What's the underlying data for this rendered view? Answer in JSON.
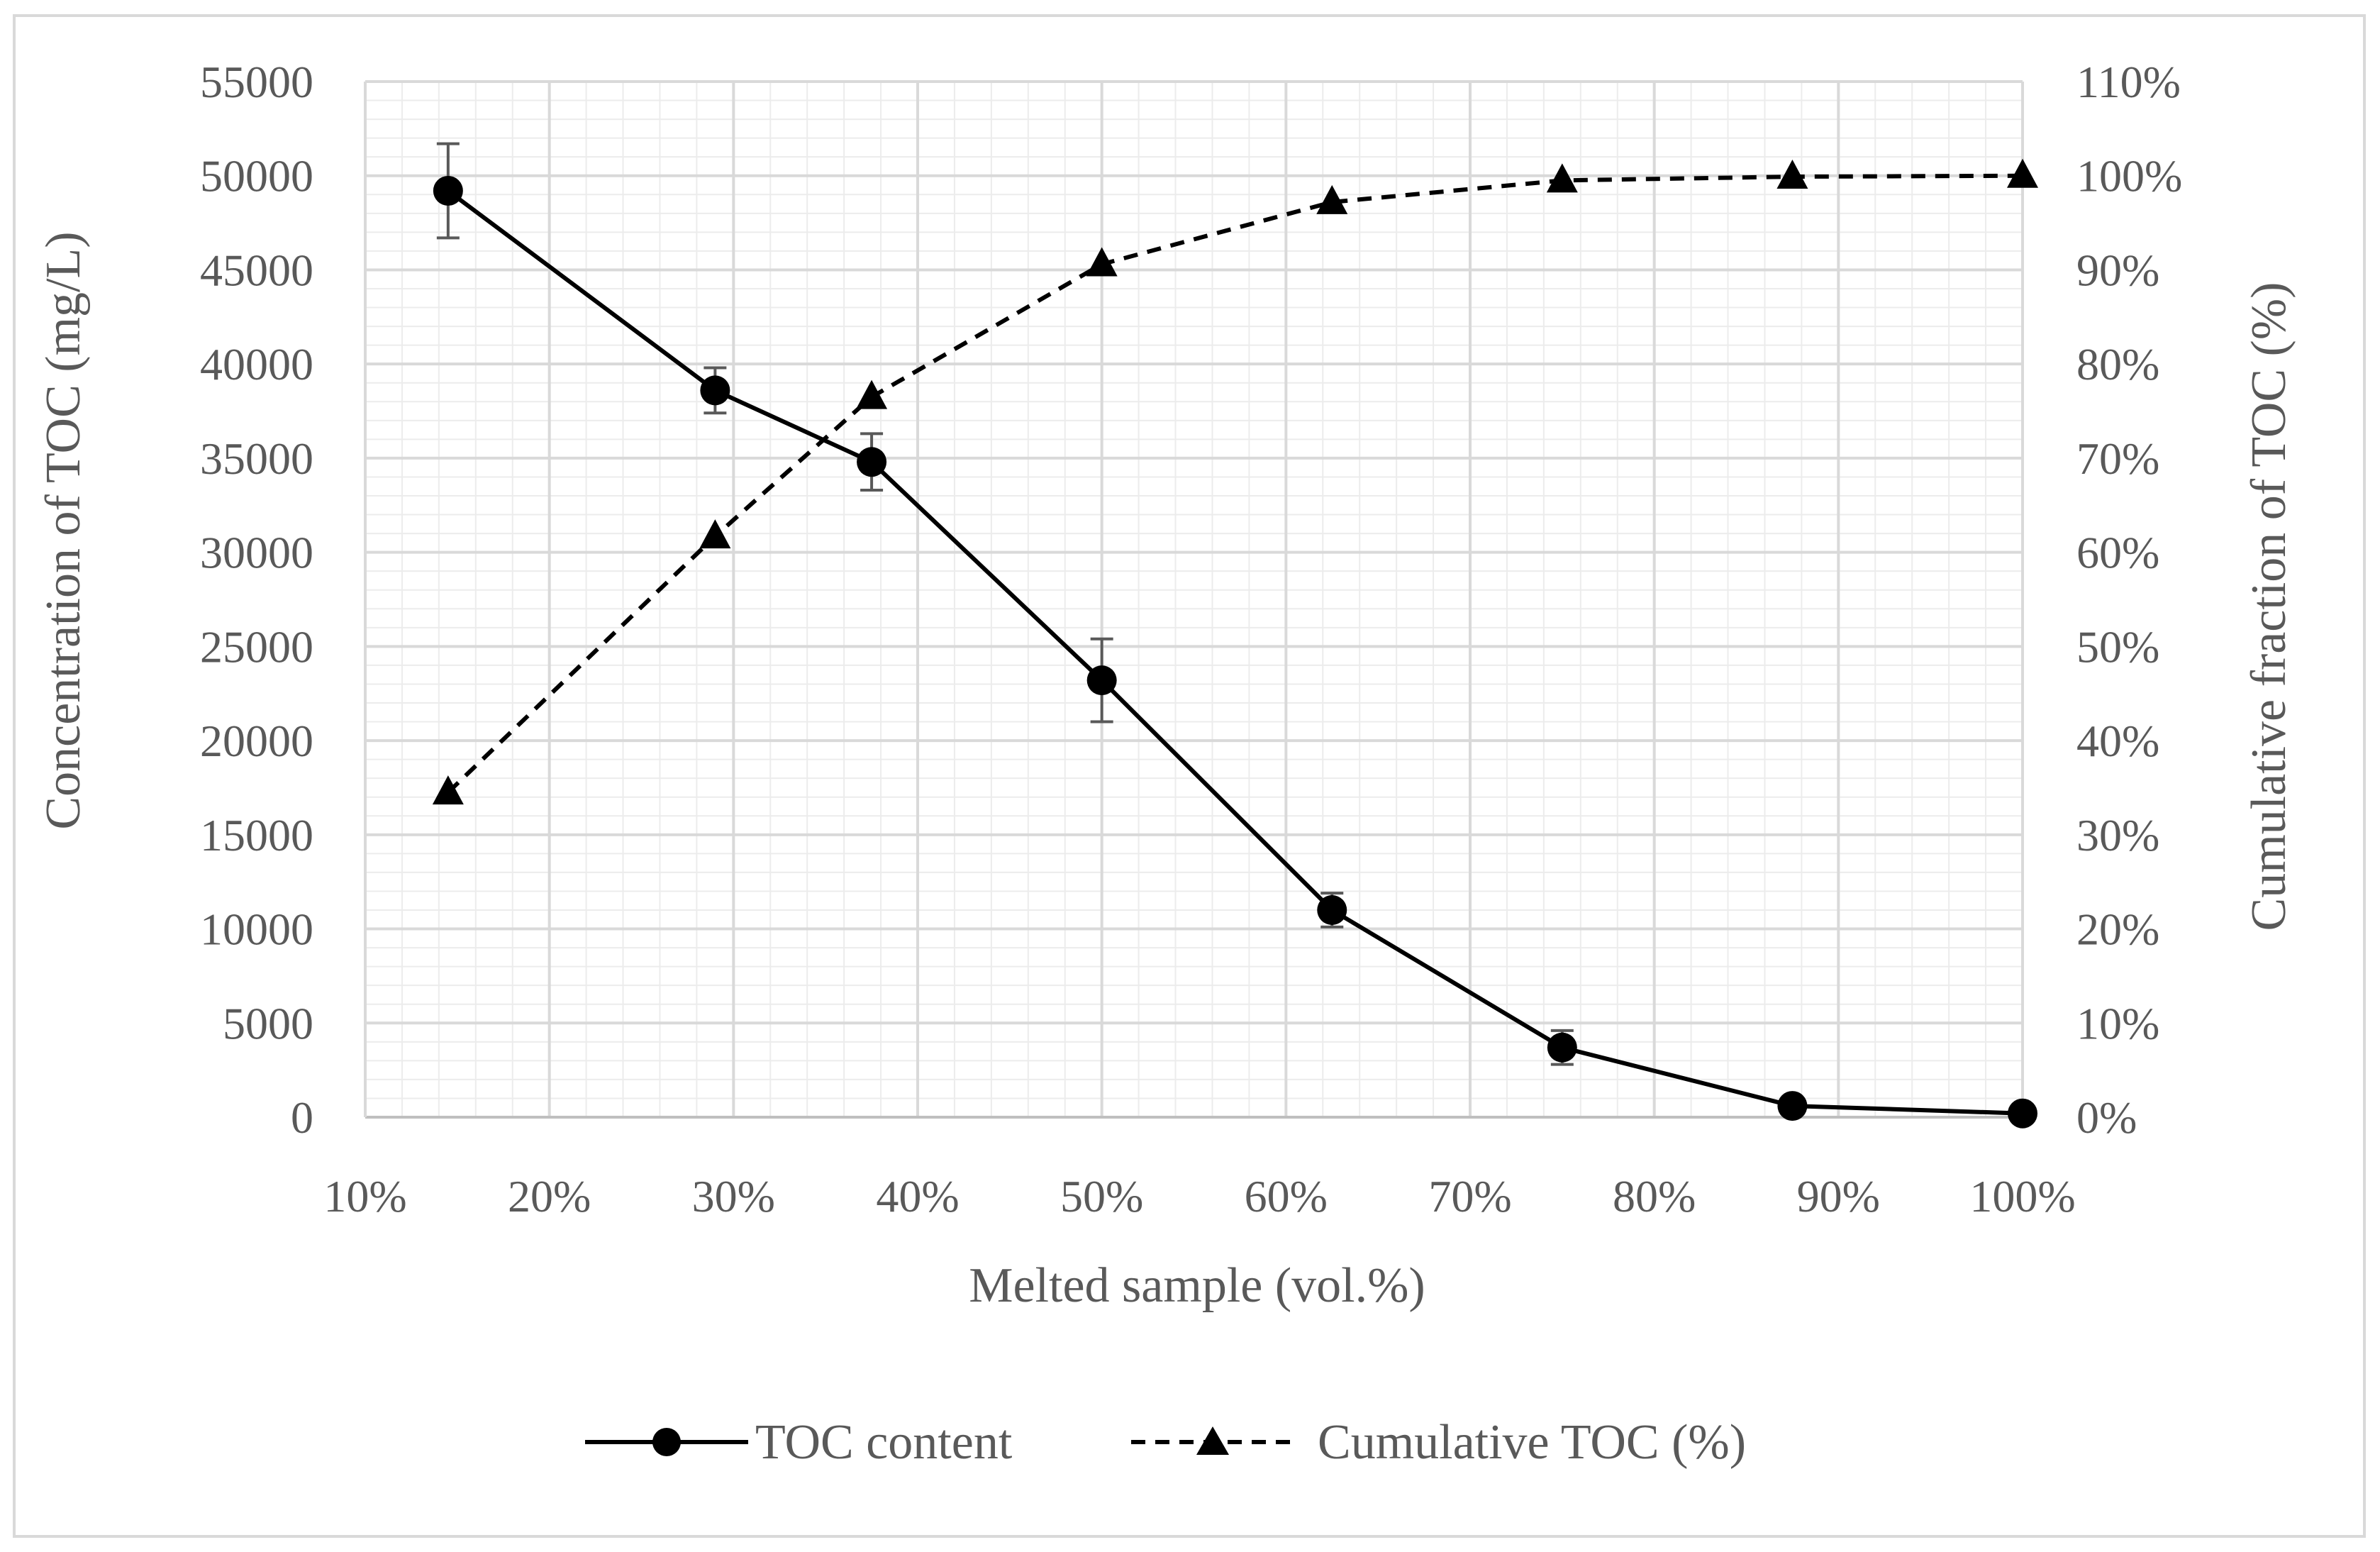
{
  "chart_data": {
    "type": "line",
    "title": "",
    "xlabel": "Melted sample (vol.%)",
    "ylabel": "Concentration of TOC (mg/L)",
    "y2label": "Cumulative fraction of TOC (%)",
    "xlim": [
      10,
      100
    ],
    "ylim": [
      0,
      55000
    ],
    "y2lim": [
      0,
      110
    ],
    "grid": true,
    "legend_position": "bottom",
    "x_ticks": [
      "10%",
      "20%",
      "30%",
      "40%",
      "50%",
      "60%",
      "70%",
      "80%",
      "90%",
      "100%"
    ],
    "y_ticks": [
      "0",
      "5000",
      "10000",
      "15000",
      "20000",
      "25000",
      "30000",
      "35000",
      "40000",
      "45000",
      "50000",
      "55000"
    ],
    "y2_ticks": [
      "0%",
      "10%",
      "20%",
      "30%",
      "40%",
      "50%",
      "60%",
      "70%",
      "80%",
      "90%",
      "100%",
      "110%"
    ],
    "series": [
      {
        "name": "TOC content",
        "axis": "left",
        "line_style": "solid",
        "marker": "circle",
        "x": [
          14.5,
          29,
          37.5,
          50,
          62.5,
          75,
          87.5,
          100
        ],
        "values": [
          49200,
          38600,
          34800,
          23200,
          11000,
          3700,
          600,
          200
        ],
        "error": [
          2500,
          1200,
          1500,
          2200,
          900,
          900,
          0,
          0
        ]
      },
      {
        "name": "Cumulative TOC (%)",
        "axis": "right",
        "line_style": "dashed",
        "marker": "triangle",
        "x": [
          14.5,
          29,
          37.5,
          50,
          62.5,
          75,
          87.5,
          100
        ],
        "values": [
          34.5,
          61.7,
          76.5,
          90.6,
          97.2,
          99.5,
          99.9,
          100
        ]
      }
    ]
  }
}
